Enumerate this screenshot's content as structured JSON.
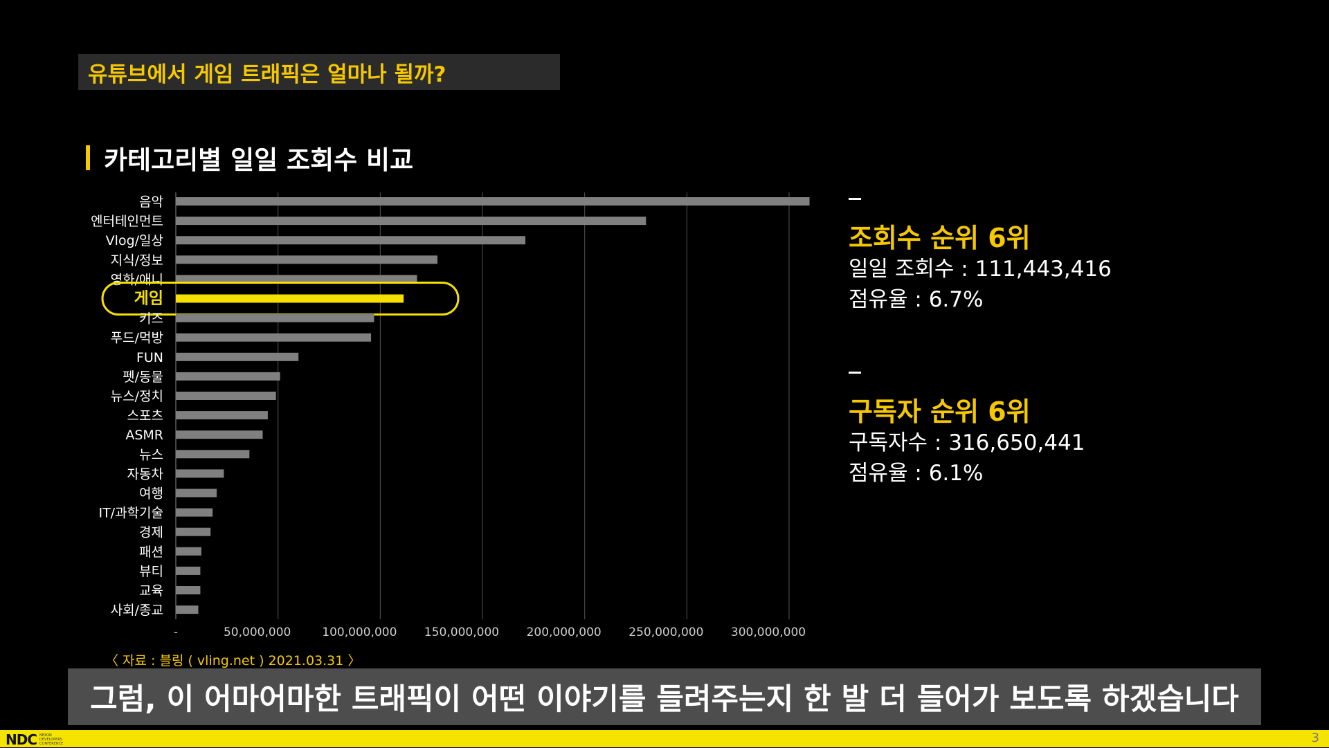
{
  "banner": {
    "title": "유튜브에서 게임 트래픽은 얼마나 될까?"
  },
  "section": {
    "title": "카테고리별 일일 조회수 비교"
  },
  "chart_data": {
    "type": "bar",
    "orientation": "horizontal",
    "categories": [
      "음악",
      "엔터테인먼트",
      "Vlog/일상",
      "지식/정보",
      "영화/애니",
      "게임",
      "키즈",
      "푸드/먹방",
      "FUN",
      "펫/동물",
      "뉴스/정치",
      "스포츠",
      "ASMR",
      "뉴스",
      "자동차",
      "여행",
      "IT/과학기술",
      "경제",
      "패션",
      "뷰티",
      "교육",
      "사회/종교"
    ],
    "values": [
      310000000,
      230000000,
      171000000,
      128000000,
      118000000,
      111443416,
      97000000,
      95500000,
      60000000,
      51000000,
      49000000,
      45000000,
      42500000,
      36000000,
      23500000,
      20000000,
      18000000,
      17000000,
      12500000,
      12000000,
      12000000,
      11000000
    ],
    "highlight_category": "게임",
    "x_ticks": [
      "-",
      "50,000,000",
      "100,000,000",
      "150,000,000",
      "200,000,000",
      "250,000,000",
      "300,000,000"
    ],
    "xlim": [
      0,
      320000000
    ],
    "grid": true,
    "colors": {
      "bar": "#808080",
      "highlight": "#f5e000",
      "grid": "#555555",
      "label": "#ffffff"
    }
  },
  "stats": [
    {
      "heading": "조회수 순위 6위",
      "lines": [
        "일일 조회수 : 111,443,416",
        "점유율 : 6.7%"
      ]
    },
    {
      "heading": "구독자 순위 6위",
      "lines": [
        "구독자수 : 316,650,441",
        "점유율 : 6.1%"
      ]
    }
  ],
  "source": "〈 자료 : 블링 ( vling.net ) 2021.03.31 〉",
  "subtitle": "그럼, 이 어마어마한 트래픽이 어떤 이야기를 들려주는지 한 발 더 들어가 보도록 하겠습니다",
  "footer": {
    "logo": "NDC",
    "logo_sub": [
      "NEXON",
      "DEVELOPERS",
      "CONFERENCE"
    ],
    "page": "3"
  }
}
